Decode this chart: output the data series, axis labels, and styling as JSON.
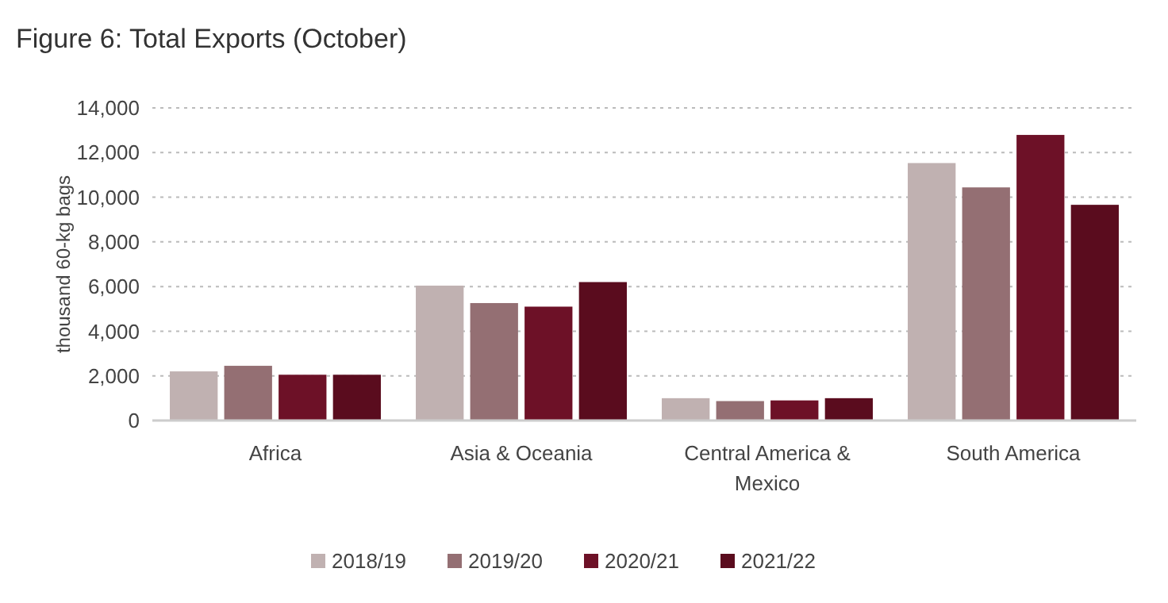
{
  "chart_data": {
    "type": "bar",
    "title": "Figure 6: Total Exports (October)",
    "ylabel": "thousand 60-kg bags",
    "categories": [
      "Africa",
      "Asia & Oceania",
      "Central America & Mexico",
      "South America"
    ],
    "series": [
      {
        "name": "2018/19",
        "color": "#c0b1b1",
        "values": [
          2200,
          6040,
          1000,
          11530
        ]
      },
      {
        "name": "2019/20",
        "color": "#946f73",
        "values": [
          2450,
          5260,
          870,
          10440
        ]
      },
      {
        "name": "2020/21",
        "color": "#6d1127",
        "values": [
          2050,
          5100,
          900,
          12790
        ]
      },
      {
        "name": "2021/22",
        "color": "#5a0c1e",
        "values": [
          2050,
          6200,
          1000,
          9660
        ]
      }
    ],
    "ylim": [
      0,
      14000
    ],
    "yticks": [
      {
        "value": 0,
        "label": "0"
      },
      {
        "value": 2000,
        "label": "2,000"
      },
      {
        "value": 4000,
        "label": "4,000"
      },
      {
        "value": 6000,
        "label": "6,000"
      },
      {
        "value": 8000,
        "label": "8,000"
      },
      {
        "value": 10000,
        "label": "10,000"
      },
      {
        "value": 12000,
        "label": "12,000"
      },
      {
        "value": 14000,
        "label": "14,000"
      }
    ],
    "grid": "y",
    "legend": "bottom"
  }
}
